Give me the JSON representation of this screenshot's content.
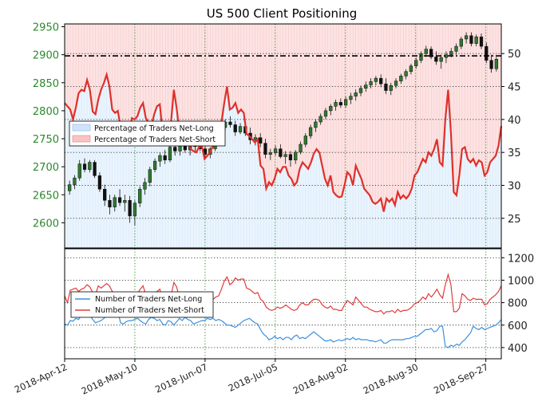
{
  "chart_data": [
    {
      "type": "line",
      "title": "US 500 Client Positioning",
      "left_axis": {
        "ylim": [
          2555,
          2955
        ],
        "ticks": [
          2600,
          2650,
          2700,
          2750,
          2800,
          2850,
          2900,
          2950
        ]
      },
      "right_axis": {
        "ylim": [
          20.5,
          54.5
        ],
        "ticks": [
          25,
          30,
          35,
          40,
          45,
          50
        ]
      },
      "grid": true,
      "legend": "left",
      "price_line_level": 2898,
      "legend_entries": [
        "Percentage of Traders Net-Long",
        "Percentage of Traders Net-Short"
      ],
      "price_ohlc": [
        [
          2657,
          2675,
          2650,
          2668
        ],
        [
          2668,
          2685,
          2660,
          2680
        ],
        [
          2680,
          2712,
          2675,
          2705
        ],
        [
          2705,
          2715,
          2690,
          2695
        ],
        [
          2695,
          2712,
          2690,
          2708
        ],
        [
          2708,
          2712,
          2680,
          2684
        ],
        [
          2684,
          2690,
          2655,
          2660
        ],
        [
          2660,
          2668,
          2630,
          2640
        ],
        [
          2640,
          2650,
          2615,
          2628
        ],
        [
          2628,
          2650,
          2620,
          2645
        ],
        [
          2645,
          2660,
          2630,
          2636
        ],
        [
          2636,
          2650,
          2620,
          2640
        ],
        [
          2640,
          2648,
          2600,
          2612
        ],
        [
          2612,
          2640,
          2595,
          2635
        ],
        [
          2635,
          2665,
          2628,
          2660
        ],
        [
          2660,
          2680,
          2650,
          2672
        ],
        [
          2672,
          2700,
          2665,
          2695
        ],
        [
          2695,
          2715,
          2690,
          2710
        ],
        [
          2710,
          2725,
          2700,
          2720
        ],
        [
          2720,
          2730,
          2705,
          2712
        ],
        [
          2712,
          2740,
          2708,
          2735
        ],
        [
          2735,
          2745,
          2720,
          2728
        ],
        [
          2728,
          2742,
          2720,
          2738
        ],
        [
          2738,
          2748,
          2725,
          2730
        ],
        [
          2730,
          2742,
          2720,
          2736
        ],
        [
          2736,
          2745,
          2728,
          2740
        ],
        [
          2740,
          2750,
          2728,
          2732
        ],
        [
          2732,
          2740,
          2715,
          2722
        ],
        [
          2722,
          2735,
          2715,
          2732
        ],
        [
          2732,
          2760,
          2728,
          2755
        ],
        [
          2755,
          2775,
          2750,
          2770
        ],
        [
          2770,
          2785,
          2765,
          2780
        ],
        [
          2780,
          2790,
          2770,
          2775
        ],
        [
          2775,
          2782,
          2755,
          2762
        ],
        [
          2762,
          2778,
          2758,
          2772
        ],
        [
          2772,
          2780,
          2755,
          2760
        ],
        [
          2760,
          2770,
          2740,
          2748
        ],
        [
          2748,
          2758,
          2738,
          2752
        ],
        [
          2752,
          2760,
          2735,
          2742
        ],
        [
          2742,
          2750,
          2715,
          2722
        ],
        [
          2722,
          2732,
          2712,
          2725
        ],
        [
          2725,
          2738,
          2720,
          2732
        ],
        [
          2732,
          2740,
          2715,
          2718
        ],
        [
          2718,
          2728,
          2705,
          2722
        ],
        [
          2722,
          2728,
          2700,
          2712
        ],
        [
          2712,
          2730,
          2705,
          2726
        ],
        [
          2726,
          2745,
          2722,
          2740
        ],
        [
          2740,
          2760,
          2735,
          2755
        ],
        [
          2755,
          2775,
          2750,
          2770
        ],
        [
          2770,
          2785,
          2762,
          2780
        ],
        [
          2780,
          2795,
          2775,
          2790
        ],
        [
          2790,
          2805,
          2785,
          2800
        ],
        [
          2800,
          2812,
          2792,
          2808
        ],
        [
          2808,
          2820,
          2800,
          2815
        ],
        [
          2815,
          2822,
          2805,
          2810
        ],
        [
          2810,
          2825,
          2805,
          2820
        ],
        [
          2820,
          2832,
          2812,
          2826
        ],
        [
          2826,
          2838,
          2818,
          2832
        ],
        [
          2832,
          2845,
          2826,
          2840
        ],
        [
          2840,
          2852,
          2834,
          2846
        ],
        [
          2846,
          2858,
          2840,
          2852
        ],
        [
          2852,
          2862,
          2845,
          2858
        ],
        [
          2858,
          2865,
          2842,
          2848
        ],
        [
          2848,
          2858,
          2830,
          2836
        ],
        [
          2836,
          2850,
          2828,
          2845
        ],
        [
          2845,
          2858,
          2840,
          2853
        ],
        [
          2853,
          2866,
          2848,
          2862
        ],
        [
          2862,
          2874,
          2856,
          2870
        ],
        [
          2870,
          2884,
          2865,
          2880
        ],
        [
          2880,
          2895,
          2875,
          2890
        ],
        [
          2890,
          2906,
          2885,
          2902
        ],
        [
          2902,
          2916,
          2896,
          2910
        ],
        [
          2910,
          2915,
          2892,
          2896
        ],
        [
          2896,
          2906,
          2882,
          2888
        ],
        [
          2888,
          2900,
          2875,
          2895
        ],
        [
          2895,
          2906,
          2885,
          2900
        ],
        [
          2900,
          2912,
          2895,
          2906
        ],
        [
          2906,
          2920,
          2900,
          2915
        ],
        [
          2915,
          2932,
          2910,
          2928
        ],
        [
          2928,
          2940,
          2920,
          2934
        ],
        [
          2934,
          2940,
          2915,
          2920
        ],
        [
          2920,
          2936,
          2915,
          2932
        ],
        [
          2932,
          2938,
          2910,
          2915
        ],
        [
          2915,
          2922,
          2885,
          2890
        ],
        [
          2890,
          2900,
          2868,
          2875
        ],
        [
          2875,
          2896,
          2870,
          2892
        ]
      ],
      "percent_net_short": [
        42.5,
        42.0,
        41.5,
        40.0,
        41.8,
        44.0,
        44.5,
        44.3,
        46.0,
        44.5,
        41.2,
        40.8,
        43.0,
        44.5,
        45.5,
        46.8,
        45.0,
        41.5,
        41.0,
        41.3,
        38.8,
        37.7,
        37.5,
        37.6,
        40.2,
        40.0,
        40.5,
        41.8,
        42.5,
        40.2,
        39.5,
        39.0,
        40.8,
        42.0,
        42.3,
        38.0,
        38.2,
        37.3,
        39.5,
        44.5,
        41.7,
        38.0,
        38.8,
        37.0,
        36.8,
        35.5,
        35.2,
        35.0,
        35.8,
        36.0,
        34.0,
        34.5,
        35.0,
        36.0,
        36.2,
        36.5,
        39.5,
        42.5,
        45.0,
        41.5,
        41.8,
        42.5,
        41.0,
        41.5,
        41.0,
        37.8,
        37.5,
        37.0,
        36.5,
        37.0,
        33.0,
        32.5,
        29.5,
        30.5,
        30.0,
        31.0,
        32.5,
        32.0,
        32.8,
        32.8,
        31.5,
        31.0,
        30.0,
        30.5,
        32.5,
        33.5,
        33.0,
        32.5,
        33.5,
        34.8,
        35.5,
        35.0,
        33.0,
        31.0,
        30.0,
        31.5,
        29.0,
        28.5,
        28.2,
        28.3,
        30.0,
        32.0,
        31.5,
        30.0,
        33.0,
        32.0,
        31.0,
        29.5,
        29.0,
        28.5,
        27.5,
        27.2,
        27.5,
        28.0,
        26.0,
        28.0,
        27.5,
        28.0,
        27.0,
        29.0,
        28.0,
        28.5,
        28.0,
        28.5,
        29.5,
        31.5,
        32.0,
        33.0,
        34.0,
        33.5,
        35.0,
        34.5,
        35.5,
        37.0,
        33.5,
        33.0,
        40.0,
        44.5,
        38.0,
        29.0,
        28.5,
        31.5,
        35.5,
        35.8,
        34.0,
        33.5,
        34.0,
        33.0,
        33.8,
        33.5,
        31.5,
        32.0,
        33.5,
        34.0,
        34.5,
        36.0,
        39.0
      ],
      "x_dates": [
        "2018-Apr-12",
        "2018-May-10",
        "2018-Jun-07",
        "2018-Jul-05",
        "2018-Aug-02",
        "2018-Aug-30",
        "2018-Sep-27"
      ]
    },
    {
      "type": "line",
      "ylim": [
        300,
        1280
      ],
      "ticks": [
        400,
        600,
        800,
        1000,
        1200
      ],
      "grid": true,
      "legend": "left",
      "series": [
        {
          "name": "Number of Traders Net-Long",
          "color": "#3b8fe0",
          "values": [
            610,
            600,
            640,
            635,
            660,
            650,
            690,
            700,
            680,
            690,
            650,
            620,
            630,
            640,
            660,
            680,
            720,
            690,
            700,
            720,
            620,
            610,
            630,
            640,
            640,
            650,
            660,
            640,
            620,
            610,
            650,
            670,
            660,
            640,
            650,
            610,
            600,
            640,
            630,
            600,
            630,
            660,
            640,
            670,
            650,
            640,
            610,
            620,
            630,
            640,
            640,
            660,
            650,
            660,
            640,
            650,
            640,
            620,
            600,
            600,
            590,
            580,
            600,
            620,
            640,
            650,
            660,
            640,
            620,
            610,
            560,
            520,
            500,
            470,
            480,
            500,
            480,
            490,
            470,
            490,
            490,
            470,
            500,
            510,
            480,
            490,
            480,
            500,
            520,
            540,
            520,
            500,
            480,
            460,
            460,
            470,
            450,
            460,
            470,
            460,
            470,
            480,
            470,
            490,
            470,
            480,
            470,
            470,
            470,
            460,
            460,
            450,
            460,
            470,
            440,
            440,
            460,
            470,
            470,
            470,
            470,
            470,
            480,
            480,
            490,
            500,
            500,
            520,
            540,
            560,
            560,
            570,
            540,
            550,
            590,
            590,
            410,
            400,
            420,
            410,
            430,
            420,
            450,
            470,
            500,
            530,
            590,
            570,
            560,
            580,
            560,
            570,
            580,
            590,
            600,
            620,
            650
          ]
        },
        {
          "name": "Number of Traders Net-Short",
          "color": "#e23b3b",
          "values": [
            860,
            800,
            910,
            920,
            930,
            900,
            920,
            930,
            960,
            940,
            890,
            870,
            950,
            930,
            950,
            970,
            950,
            900,
            880,
            890,
            830,
            800,
            810,
            830,
            860,
            860,
            880,
            920,
            950,
            870,
            850,
            840,
            870,
            900,
            920,
            820,
            830,
            830,
            860,
            980,
            940,
            840,
            860,
            820,
            830,
            790,
            780,
            770,
            790,
            800,
            760,
            780,
            800,
            830,
            850,
            860,
            920,
            990,
            1030,
            960,
            980,
            1020,
            1000,
            1010,
            1010,
            930,
            920,
            900,
            880,
            890,
            830,
            810,
            760,
            740,
            730,
            740,
            760,
            750,
            760,
            780,
            760,
            740,
            730,
            740,
            780,
            800,
            780,
            780,
            810,
            830,
            830,
            820,
            780,
            760,
            750,
            770,
            740,
            740,
            730,
            730,
            780,
            820,
            800,
            780,
            850,
            820,
            790,
            760,
            760,
            740,
            730,
            720,
            720,
            730,
            700,
            720,
            720,
            730,
            710,
            740,
            720,
            730,
            730,
            740,
            760,
            790,
            800,
            820,
            850,
            830,
            880,
            850,
            880,
            920,
            870,
            840,
            960,
            1050,
            960,
            720,
            720,
            750,
            880,
            860,
            830,
            820,
            840,
            830,
            830,
            830,
            780,
            790,
            830,
            850,
            870,
            900,
            950
          ]
        }
      ]
    }
  ]
}
